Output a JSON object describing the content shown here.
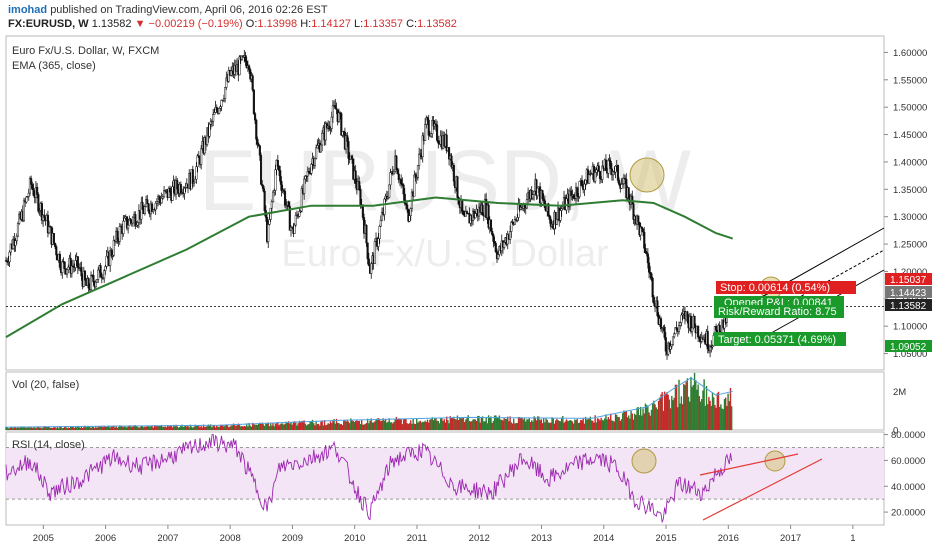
{
  "header": {
    "user": "imohad",
    "published_text": "published on TradingView.com, April 06, 2016 02:26 EST",
    "symbol": "FX:EURUSD, W",
    "price": "1.13582",
    "change_arrow": "▼",
    "change": "−0.00219 (−0.19%)",
    "o_label": "O:",
    "o_val": "1.13998",
    "h_label": "H:",
    "h_val": "1.14127",
    "l_label": "L:",
    "l_val": "1.13357",
    "c_label": "C:",
    "c_val": "1.13582"
  },
  "price_pane": {
    "title": "Euro Fx/U.S. Dollar, W, FXCM",
    "indicator": "EMA (365, close)",
    "watermark_symbol": "EURUSD, W",
    "watermark_name": "Euro Fx/U.S. Dollar"
  },
  "vol_pane": {
    "label": "Vol (20, false)"
  },
  "rsi_pane": {
    "label": "RSI (14, close)"
  },
  "trade_boxes": {
    "stop": "Stop: 0.00614 (0.54%)",
    "opened": "Opened P&L: 0.00841",
    "ratio": "Risk/Reward Ratio: 8.75",
    "target": "Target: 0.05371 (4.69%)"
  },
  "price_tags": [
    "1.15037",
    "1.14423",
    "1.13582",
    "1.09052"
  ],
  "colors": {
    "up": "#2e7d32",
    "down": "#c62828",
    "ema": "#2e7d32",
    "rsi": "#9c27b0",
    "rsi_band": "#f3e5f5",
    "stop": "#e02020",
    "target": "#1a9a2a"
  },
  "chart_data": {
    "type": "candlestick",
    "timeframe": "W",
    "x_ticks": [
      "2005",
      "2006",
      "2007",
      "2008",
      "2009",
      "2010",
      "2011",
      "2012",
      "2013",
      "2014",
      "2015",
      "2016",
      "2017",
      "1"
    ],
    "price_axis_ticks": [
      "1.60000",
      "1.55000",
      "1.50000",
      "1.45000",
      "1.40000",
      "1.35000",
      "1.30000",
      "1.25000",
      "1.20000",
      "1.15000",
      "1.10000",
      "1.05000"
    ],
    "price_ylim": [
      1.02,
      1.63
    ],
    "price_series": [
      {
        "t": 2004.6,
        "v": 1.22
      },
      {
        "t": 2004.85,
        "v": 1.3
      },
      {
        "t": 2005.0,
        "v": 1.36
      },
      {
        "t": 2005.25,
        "v": 1.29
      },
      {
        "t": 2005.5,
        "v": 1.21
      },
      {
        "t": 2005.75,
        "v": 1.21
      },
      {
        "t": 2005.9,
        "v": 1.17
      },
      {
        "t": 2006.2,
        "v": 1.21
      },
      {
        "t": 2006.45,
        "v": 1.28
      },
      {
        "t": 2006.9,
        "v": 1.32
      },
      {
        "t": 2007.3,
        "v": 1.35
      },
      {
        "t": 2007.6,
        "v": 1.37
      },
      {
        "t": 2007.9,
        "v": 1.47
      },
      {
        "t": 2008.2,
        "v": 1.56
      },
      {
        "t": 2008.5,
        "v": 1.59
      },
      {
        "t": 2008.8,
        "v": 1.26
      },
      {
        "t": 2008.95,
        "v": 1.4
      },
      {
        "t": 2009.2,
        "v": 1.27
      },
      {
        "t": 2009.5,
        "v": 1.4
      },
      {
        "t": 2009.9,
        "v": 1.5
      },
      {
        "t": 2010.3,
        "v": 1.33
      },
      {
        "t": 2010.45,
        "v": 1.2
      },
      {
        "t": 2010.7,
        "v": 1.33
      },
      {
        "t": 2010.85,
        "v": 1.41
      },
      {
        "t": 2011.05,
        "v": 1.3
      },
      {
        "t": 2011.35,
        "v": 1.47
      },
      {
        "t": 2011.7,
        "v": 1.43
      },
      {
        "t": 2011.95,
        "v": 1.29
      },
      {
        "t": 2012.3,
        "v": 1.32
      },
      {
        "t": 2012.5,
        "v": 1.23
      },
      {
        "t": 2012.8,
        "v": 1.3
      },
      {
        "t": 2013.1,
        "v": 1.36
      },
      {
        "t": 2013.35,
        "v": 1.29
      },
      {
        "t": 2013.7,
        "v": 1.34
      },
      {
        "t": 2014.0,
        "v": 1.38
      },
      {
        "t": 2014.35,
        "v": 1.39
      },
      {
        "t": 2014.6,
        "v": 1.34
      },
      {
        "t": 2014.85,
        "v": 1.25
      },
      {
        "t": 2015.0,
        "v": 1.16
      },
      {
        "t": 2015.2,
        "v": 1.06
      },
      {
        "t": 2015.5,
        "v": 1.12
      },
      {
        "t": 2015.9,
        "v": 1.07
      },
      {
        "t": 2016.1,
        "v": 1.1
      },
      {
        "t": 2016.27,
        "v": 1.136
      }
    ],
    "ema_series": [
      {
        "t": 2004.6,
        "v": 1.08
      },
      {
        "t": 2005.5,
        "v": 1.14
      },
      {
        "t": 2006.5,
        "v": 1.19
      },
      {
        "t": 2007.5,
        "v": 1.24
      },
      {
        "t": 2008.5,
        "v": 1.3
      },
      {
        "t": 2009.5,
        "v": 1.32
      },
      {
        "t": 2010.5,
        "v": 1.32
      },
      {
        "t": 2011.5,
        "v": 1.335
      },
      {
        "t": 2012.5,
        "v": 1.325
      },
      {
        "t": 2013.5,
        "v": 1.32
      },
      {
        "t": 2014.5,
        "v": 1.33
      },
      {
        "t": 2015.0,
        "v": 1.325
      },
      {
        "t": 2015.5,
        "v": 1.3
      },
      {
        "t": 2016.0,
        "v": 1.27
      },
      {
        "t": 2016.27,
        "v": 1.26
      }
    ],
    "last_price_line": 1.13582,
    "stop_level": 1.15037,
    "entry_level": 1.14423,
    "target_level": 1.09052,
    "vol_axis_ticks": [
      "2M",
      "0"
    ],
    "vol_ylim": [
      0,
      3000000
    ],
    "vol_series": [
      {
        "t": 2004.6,
        "v": 150000
      },
      {
        "t": 2008.0,
        "v": 250000
      },
      {
        "t": 2010.0,
        "v": 500000
      },
      {
        "t": 2012.0,
        "v": 650000
      },
      {
        "t": 2014.0,
        "v": 600000
      },
      {
        "t": 2014.9,
        "v": 1200000
      },
      {
        "t": 2015.3,
        "v": 2100000
      },
      {
        "t": 2015.6,
        "v": 2700000
      },
      {
        "t": 2016.0,
        "v": 1800000
      },
      {
        "t": 2016.27,
        "v": 2000000
      }
    ],
    "rsi_axis_ticks": [
      "80.0000",
      "60.0000",
      "40.0000",
      "20.0000"
    ],
    "rsi_ylim": [
      10,
      82
    ],
    "rsi_band": [
      30,
      70
    ],
    "rsi_series": [
      {
        "t": 2004.6,
        "v": 50
      },
      {
        "t": 2005.0,
        "v": 60
      },
      {
        "t": 2005.3,
        "v": 35
      },
      {
        "t": 2005.8,
        "v": 45
      },
      {
        "t": 2006.3,
        "v": 62
      },
      {
        "t": 2006.8,
        "v": 55
      },
      {
        "t": 2007.4,
        "v": 66
      },
      {
        "t": 2007.9,
        "v": 75
      },
      {
        "t": 2008.3,
        "v": 70
      },
      {
        "t": 2008.8,
        "v": 22
      },
      {
        "t": 2009.0,
        "v": 55
      },
      {
        "t": 2009.4,
        "v": 60
      },
      {
        "t": 2009.9,
        "v": 70
      },
      {
        "t": 2010.3,
        "v": 30
      },
      {
        "t": 2010.45,
        "v": 20
      },
      {
        "t": 2010.8,
        "v": 60
      },
      {
        "t": 2011.3,
        "v": 68
      },
      {
        "t": 2011.8,
        "v": 40
      },
      {
        "t": 2012.4,
        "v": 35
      },
      {
        "t": 2012.9,
        "v": 62
      },
      {
        "t": 2013.3,
        "v": 45
      },
      {
        "t": 2013.8,
        "v": 58
      },
      {
        "t": 2014.1,
        "v": 62
      },
      {
        "t": 2014.4,
        "v": 55
      },
      {
        "t": 2014.7,
        "v": 30
      },
      {
        "t": 2015.0,
        "v": 22
      },
      {
        "t": 2015.15,
        "v": 15
      },
      {
        "t": 2015.4,
        "v": 42
      },
      {
        "t": 2015.8,
        "v": 35
      },
      {
        "t": 2016.0,
        "v": 50
      },
      {
        "t": 2016.27,
        "v": 62
      }
    ]
  }
}
